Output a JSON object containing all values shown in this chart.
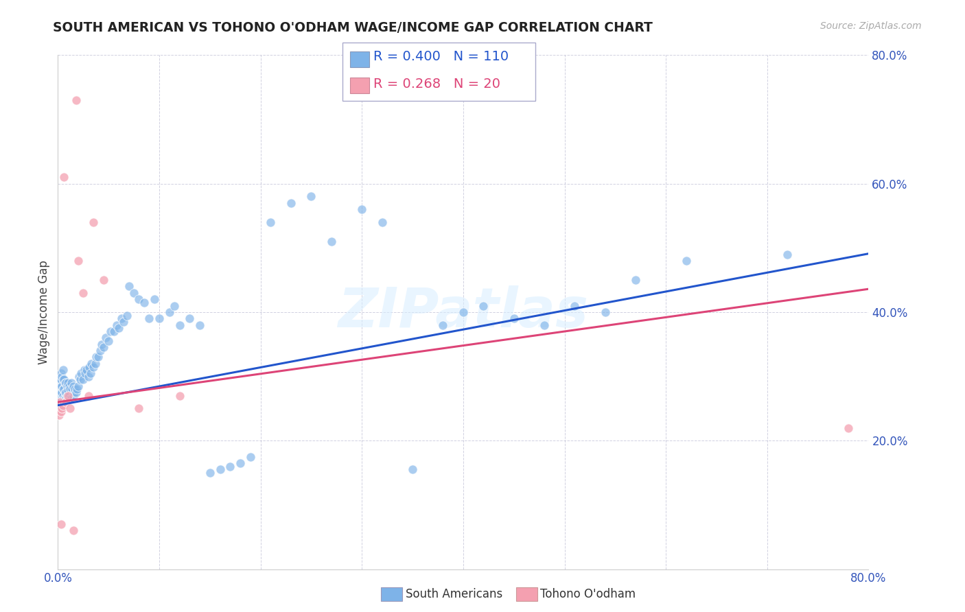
{
  "title": "SOUTH AMERICAN VS TOHONO O'ODHAM WAGE/INCOME GAP CORRELATION CHART",
  "source": "Source: ZipAtlas.com",
  "ylabel": "Wage/Income Gap",
  "xlim": [
    0.0,
    0.8
  ],
  "ylim": [
    0.0,
    0.8
  ],
  "xtick_positions": [
    0.0,
    0.1,
    0.2,
    0.3,
    0.4,
    0.5,
    0.6,
    0.7,
    0.8
  ],
  "xtick_labels": [
    "0.0%",
    "",
    "",
    "",
    "",
    "",
    "",
    "",
    "80.0%"
  ],
  "ytick_positions": [
    0.0,
    0.2,
    0.4,
    0.6,
    0.8
  ],
  "ytick_labels": [
    "",
    "20.0%",
    "40.0%",
    "60.0%",
    "80.0%"
  ],
  "blue_R": 0.4,
  "blue_N": 110,
  "pink_R": 0.268,
  "pink_N": 20,
  "blue_color": "#7EB3E8",
  "pink_color": "#F4A0B0",
  "blue_line_color": "#2255CC",
  "pink_line_color": "#DD4477",
  "legend_blue_label": "South Americans",
  "legend_pink_label": "Tohono O'odham",
  "watermark": "ZIPatlas",
  "blue_reg_intercept": 0.255,
  "blue_reg_slope": 0.295,
  "pink_reg_intercept": 0.26,
  "pink_reg_slope": 0.22,
  "blue_scatter_x": [
    0.001,
    0.001,
    0.001,
    0.002,
    0.002,
    0.002,
    0.002,
    0.003,
    0.003,
    0.003,
    0.003,
    0.003,
    0.004,
    0.004,
    0.004,
    0.004,
    0.005,
    0.005,
    0.005,
    0.005,
    0.005,
    0.006,
    0.006,
    0.006,
    0.007,
    0.007,
    0.007,
    0.008,
    0.008,
    0.008,
    0.009,
    0.009,
    0.01,
    0.01,
    0.01,
    0.011,
    0.011,
    0.012,
    0.012,
    0.013,
    0.013,
    0.014,
    0.015,
    0.015,
    0.016,
    0.017,
    0.018,
    0.019,
    0.02,
    0.021,
    0.022,
    0.023,
    0.025,
    0.026,
    0.027,
    0.028,
    0.03,
    0.031,
    0.032,
    0.033,
    0.035,
    0.037,
    0.038,
    0.04,
    0.042,
    0.043,
    0.045,
    0.047,
    0.05,
    0.052,
    0.055,
    0.058,
    0.06,
    0.063,
    0.065,
    0.068,
    0.07,
    0.075,
    0.08,
    0.085,
    0.09,
    0.095,
    0.1,
    0.11,
    0.115,
    0.12,
    0.13,
    0.14,
    0.15,
    0.16,
    0.17,
    0.18,
    0.19,
    0.21,
    0.23,
    0.25,
    0.27,
    0.3,
    0.32,
    0.35,
    0.38,
    0.4,
    0.42,
    0.45,
    0.48,
    0.51,
    0.54,
    0.57,
    0.62,
    0.72
  ],
  "blue_scatter_y": [
    0.26,
    0.275,
    0.29,
    0.255,
    0.27,
    0.285,
    0.295,
    0.26,
    0.275,
    0.285,
    0.295,
    0.305,
    0.265,
    0.275,
    0.285,
    0.3,
    0.26,
    0.27,
    0.28,
    0.295,
    0.31,
    0.265,
    0.28,
    0.295,
    0.265,
    0.275,
    0.29,
    0.265,
    0.275,
    0.29,
    0.27,
    0.285,
    0.265,
    0.278,
    0.29,
    0.27,
    0.285,
    0.265,
    0.28,
    0.265,
    0.29,
    0.28,
    0.27,
    0.285,
    0.275,
    0.28,
    0.275,
    0.28,
    0.285,
    0.3,
    0.295,
    0.305,
    0.295,
    0.31,
    0.305,
    0.31,
    0.3,
    0.315,
    0.305,
    0.32,
    0.315,
    0.32,
    0.33,
    0.33,
    0.34,
    0.35,
    0.345,
    0.36,
    0.355,
    0.37,
    0.37,
    0.38,
    0.375,
    0.39,
    0.385,
    0.395,
    0.44,
    0.43,
    0.42,
    0.415,
    0.39,
    0.42,
    0.39,
    0.4,
    0.41,
    0.38,
    0.39,
    0.38,
    0.15,
    0.155,
    0.16,
    0.165,
    0.175,
    0.54,
    0.57,
    0.58,
    0.51,
    0.56,
    0.54,
    0.155,
    0.38,
    0.4,
    0.41,
    0.39,
    0.38,
    0.41,
    0.4,
    0.45,
    0.48,
    0.49
  ],
  "pink_scatter_x": [
    0.001,
    0.002,
    0.003,
    0.004,
    0.005,
    0.006,
    0.008,
    0.01,
    0.012,
    0.015,
    0.018,
    0.02,
    0.025,
    0.03,
    0.035,
    0.045,
    0.08,
    0.12,
    0.78,
    0.003
  ],
  "pink_scatter_y": [
    0.24,
    0.26,
    0.245,
    0.25,
    0.255,
    0.61,
    0.26,
    0.27,
    0.25,
    0.06,
    0.73,
    0.48,
    0.43,
    0.27,
    0.54,
    0.45,
    0.25,
    0.27,
    0.22,
    0.07
  ]
}
